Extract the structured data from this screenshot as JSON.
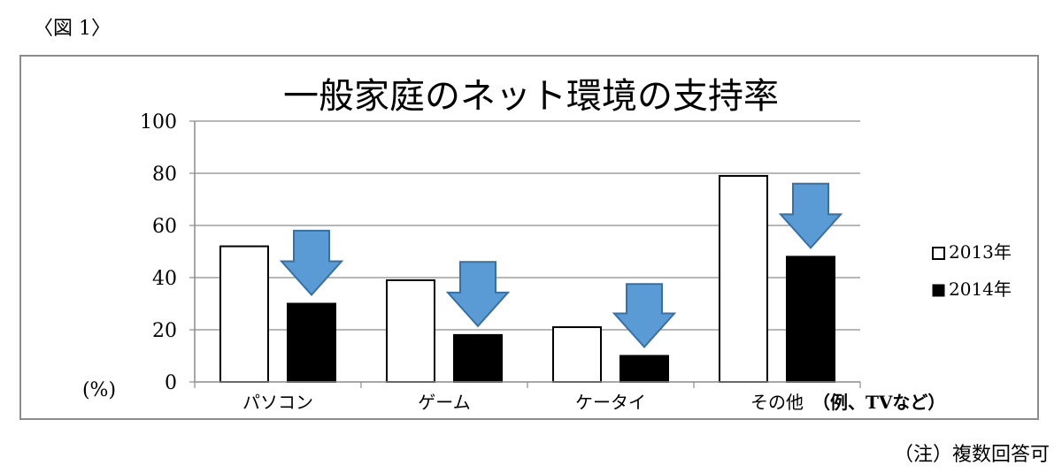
{
  "figure_label": "〈図 1〉",
  "note": "（注）複数回答可",
  "chart_data": {
    "type": "bar",
    "title": "一般家庭のネット環境の支持率",
    "ylabel": "(%)",
    "xlabel": "",
    "ylim": [
      0,
      100
    ],
    "yticks": [
      0,
      20,
      40,
      60,
      80,
      100
    ],
    "grid": true,
    "legend_position": "right",
    "categories": [
      "パソコン",
      "ゲーム",
      "ケータイ",
      "その他"
    ],
    "category_note": "（例、TVなど）",
    "series": [
      {
        "name": "2013年",
        "values": [
          52,
          39,
          21,
          79
        ],
        "fill": "#ffffff"
      },
      {
        "name": "2014年",
        "values": [
          30,
          18,
          10,
          48
        ],
        "fill": "#000000"
      }
    ],
    "arrow_color": "#5b9bd5"
  }
}
